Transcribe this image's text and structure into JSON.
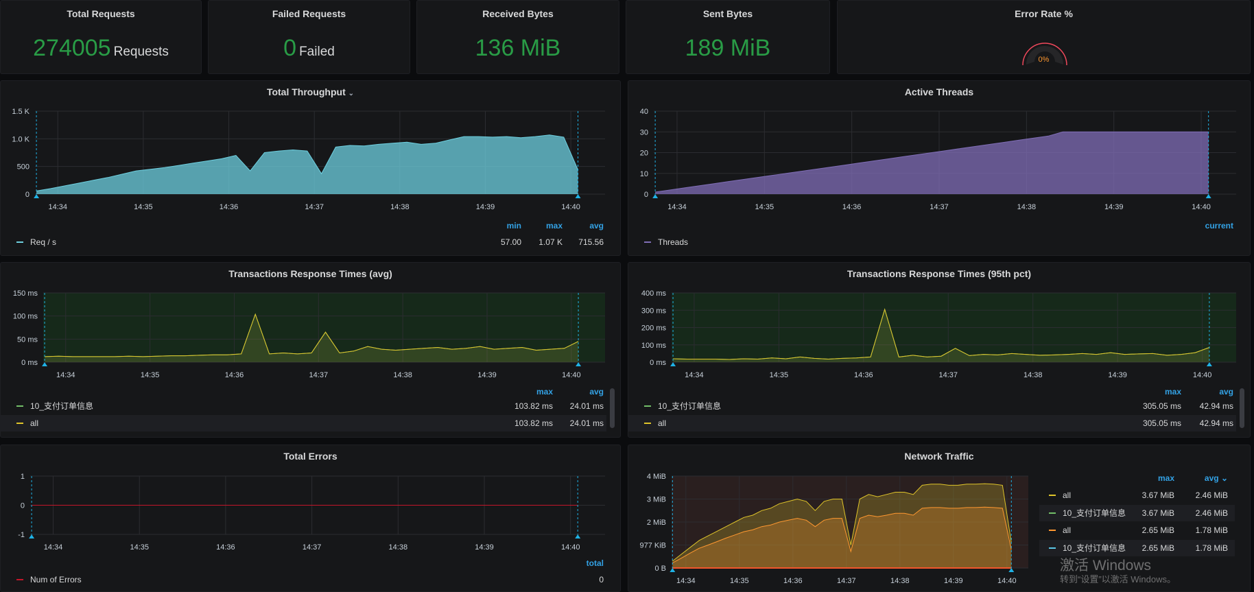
{
  "stats": [
    {
      "title": "Total Requests",
      "value": "274005",
      "unit": "Requests"
    },
    {
      "title": "Failed Requests",
      "value": "0",
      "unit": "Failed"
    },
    {
      "title": "Received Bytes",
      "value": "136 MiB",
      "unit": ""
    },
    {
      "title": "Sent Bytes",
      "value": "189 MiB",
      "unit": ""
    }
  ],
  "error_rate": {
    "title": "Error Rate %",
    "value": "0%",
    "fraction": 0,
    "color": "#f2495c"
  },
  "timestamps": [
    "14:33:45",
    "14:33:55",
    "14:34:05",
    "14:34:15",
    "14:34:25",
    "14:34:35",
    "14:34:45",
    "14:34:55",
    "14:35:05",
    "14:35:15",
    "14:35:25",
    "14:35:35",
    "14:35:45",
    "14:35:55",
    "14:36:05",
    "14:36:15",
    "14:36:25",
    "14:36:35",
    "14:36:45",
    "14:36:55",
    "14:37:05",
    "14:37:15",
    "14:37:25",
    "14:37:35",
    "14:37:45",
    "14:37:55",
    "14:38:05",
    "14:38:15",
    "14:38:25",
    "14:38:35",
    "14:38:45",
    "14:38:55",
    "14:39:05",
    "14:39:15",
    "14:39:25",
    "14:39:35",
    "14:39:45",
    "14:39:55",
    "14:40:05"
  ],
  "x_ticks": [
    "14:34",
    "14:35",
    "14:36",
    "14:37",
    "14:38",
    "14:39",
    "14:40"
  ],
  "chart_data": [
    {
      "id": "throughput",
      "type": "area",
      "title": "Total Throughput",
      "title_icon": "chevron-down-icon",
      "ylim": [
        0,
        1500
      ],
      "y_ticks": [
        "0",
        "500",
        "1.0 K",
        "1.5 K"
      ],
      "grid": true,
      "series": [
        {
          "name": "Req / s",
          "color": "#6ed0e0",
          "values": [
            57,
            100,
            150,
            200,
            250,
            300,
            360,
            420,
            450,
            480,
            520,
            560,
            600,
            640,
            700,
            420,
            750,
            780,
            800,
            780,
            370,
            850,
            880,
            870,
            900,
            920,
            940,
            900,
            920,
            980,
            1040,
            1040,
            1030,
            1040,
            1020,
            1040,
            1070,
            1030,
            440
          ]
        }
      ],
      "legend": {
        "headers": [
          "min",
          "max",
          "avg"
        ],
        "rows": [
          {
            "name": "Req / s",
            "color": "#6ed0e0",
            "vals": [
              "57.00",
              "1.07 K",
              "715.56"
            ]
          }
        ]
      }
    },
    {
      "id": "threads",
      "type": "area",
      "title": "Active Threads",
      "ylim": [
        0,
        40
      ],
      "y_ticks": [
        "0",
        "10",
        "20",
        "30",
        "40"
      ],
      "grid": true,
      "series": [
        {
          "name": "Threads",
          "color": "#806eb7",
          "values": [
            1,
            2,
            3,
            4,
            5,
            6,
            7,
            8,
            9,
            10,
            11,
            12,
            13,
            14,
            15,
            16,
            17,
            18,
            19,
            20,
            21,
            22,
            23,
            24,
            25,
            26,
            27,
            28,
            30,
            30,
            30,
            30,
            30,
            30,
            30,
            30,
            30,
            30,
            30
          ]
        }
      ],
      "legend": {
        "headers": [
          "current"
        ],
        "rows": [
          {
            "name": "Threads",
            "color": "#806eb7",
            "vals": [
              ""
            ]
          }
        ]
      }
    },
    {
      "id": "resp-avg",
      "type": "line",
      "title": "Transactions Response Times (avg)",
      "ylim": [
        0,
        150
      ],
      "y_ticks": [
        "0 ms",
        "50 ms",
        "100 ms",
        "150 ms"
      ],
      "grid": true,
      "bg": "#16291a",
      "series": [
        {
          "name": "10_支付订单信息",
          "color": "#73bf69",
          "values": [
            12,
            13,
            12,
            12,
            12,
            12,
            13,
            12,
            13,
            14,
            14,
            15,
            16,
            16,
            18,
            103.82,
            18,
            20,
            18,
            20,
            65,
            20,
            24,
            34,
            28,
            26,
            28,
            30,
            32,
            28,
            30,
            34,
            28,
            30,
            32,
            26,
            28,
            30,
            45
          ]
        },
        {
          "name": "all",
          "color": "#e0c52a",
          "values": [
            12,
            13,
            12,
            12,
            12,
            12,
            13,
            12,
            13,
            14,
            14,
            15,
            16,
            16,
            18,
            103.82,
            18,
            20,
            18,
            20,
            65,
            20,
            24,
            34,
            28,
            26,
            28,
            30,
            32,
            28,
            30,
            34,
            28,
            30,
            32,
            26,
            28,
            30,
            45
          ]
        }
      ],
      "legend": {
        "headers": [
          "max",
          "avg"
        ],
        "rows": [
          {
            "name": "10_支付订单信息",
            "color": "#73bf69",
            "vals": [
              "103.82 ms",
              "24.01 ms"
            ]
          },
          {
            "name": "all",
            "color": "#e0c52a",
            "vals": [
              "103.82 ms",
              "24.01 ms"
            ]
          }
        ]
      }
    },
    {
      "id": "resp-95",
      "type": "line",
      "title": "Transactions Response Times (95th pct)",
      "ylim": [
        0,
        400
      ],
      "y_ticks": [
        "0 ms",
        "100 ms",
        "200 ms",
        "300 ms",
        "400 ms"
      ],
      "grid": true,
      "bg": "#16291a",
      "series": [
        {
          "name": "10_支付订单信息",
          "color": "#73bf69",
          "values": [
            20,
            18,
            18,
            18,
            16,
            20,
            18,
            25,
            20,
            30,
            22,
            18,
            22,
            25,
            30,
            305.05,
            30,
            40,
            30,
            35,
            80,
            38,
            45,
            42,
            50,
            45,
            40,
            42,
            45,
            50,
            45,
            55,
            45,
            48,
            50,
            40,
            45,
            55,
            85
          ]
        },
        {
          "name": "all",
          "color": "#e0c52a",
          "values": [
            20,
            18,
            18,
            18,
            16,
            20,
            18,
            25,
            20,
            30,
            22,
            18,
            22,
            25,
            30,
            305.05,
            30,
            40,
            30,
            35,
            80,
            38,
            45,
            42,
            50,
            45,
            40,
            42,
            45,
            50,
            45,
            55,
            45,
            48,
            50,
            40,
            45,
            55,
            85
          ]
        }
      ],
      "legend": {
        "headers": [
          "max",
          "avg"
        ],
        "rows": [
          {
            "name": "10_支付订单信息",
            "color": "#73bf69",
            "vals": [
              "305.05 ms",
              "42.94 ms"
            ]
          },
          {
            "name": "all",
            "color": "#e0c52a",
            "vals": [
              "305.05 ms",
              "42.94 ms"
            ]
          }
        ]
      }
    },
    {
      "id": "errors",
      "type": "line",
      "title": "Total Errors",
      "ylim": [
        -1,
        1
      ],
      "y_ticks": [
        "-1",
        "0",
        "1"
      ],
      "grid": true,
      "series": [
        {
          "name": "Num of Errors",
          "color": "#c4162a",
          "values": [
            0,
            0,
            0,
            0,
            0,
            0,
            0,
            0,
            0,
            0,
            0,
            0,
            0,
            0,
            0,
            0,
            0,
            0,
            0,
            0,
            0,
            0,
            0,
            0,
            0,
            0,
            0,
            0,
            0,
            0,
            0,
            0,
            0,
            0,
            0,
            0,
            0,
            0,
            0
          ]
        }
      ],
      "legend": {
        "headers": [
          "total"
        ],
        "rows": [
          {
            "name": "Num of Errors",
            "color": "#c4162a",
            "vals": [
              "0"
            ]
          }
        ]
      }
    },
    {
      "id": "network",
      "type": "area",
      "title": "Network Traffic",
      "ylim": [
        0,
        4
      ],
      "y_ticks": [
        "0 B",
        "977 KiB",
        "2 MiB",
        "3 MiB",
        "4 MiB"
      ],
      "grid": true,
      "bg": "#2a1f1f",
      "series": [
        {
          "name": "all",
          "color": "#e0c52a",
          "values": [
            0.3,
            0.6,
            0.9,
            1.2,
            1.4,
            1.6,
            1.8,
            2.0,
            2.2,
            2.3,
            2.5,
            2.6,
            2.8,
            2.9,
            3.0,
            2.9,
            2.5,
            2.9,
            3.0,
            3.0,
            1.0,
            3.0,
            3.2,
            3.1,
            3.2,
            3.3,
            3.3,
            3.2,
            3.6,
            3.65,
            3.65,
            3.6,
            3.6,
            3.65,
            3.65,
            3.67,
            3.65,
            3.6,
            1.1
          ]
        },
        {
          "name": "all",
          "color": "#ff9830",
          "values": [
            0.22,
            0.43,
            0.65,
            0.86,
            1.0,
            1.15,
            1.3,
            1.44,
            1.58,
            1.66,
            1.8,
            1.87,
            2.0,
            2.08,
            2.16,
            2.08,
            1.8,
            2.08,
            2.16,
            2.16,
            0.72,
            2.16,
            2.3,
            2.23,
            2.3,
            2.38,
            2.38,
            2.3,
            2.6,
            2.63,
            2.63,
            2.6,
            2.6,
            2.63,
            2.63,
            2.65,
            2.63,
            2.6,
            0.8
          ]
        },
        {
          "name": "10_支付订单信息",
          "color": "#f2552c",
          "values": [
            0,
            0,
            0,
            0,
            0,
            0,
            0,
            0,
            0,
            0,
            0,
            0,
            0,
            0,
            0,
            0,
            0,
            0,
            0,
            0,
            0,
            0,
            0,
            0,
            0,
            0,
            0,
            0,
            0,
            0,
            0,
            0,
            0,
            0,
            0,
            0,
            0,
            0,
            0
          ]
        }
      ],
      "legend": {
        "headers": [
          "max",
          "avg"
        ],
        "rows": [
          {
            "name": "all",
            "color": "#e0c52a",
            "vals": [
              "3.67 MiB",
              "2.46 MiB"
            ]
          },
          {
            "name": "10_支付订单信息",
            "color": "#73bf69",
            "vals": [
              "3.67 MiB",
              "2.46 MiB"
            ]
          },
          {
            "name": "all",
            "color": "#ff9830",
            "vals": [
              "2.65 MiB",
              "1.78 MiB"
            ]
          },
          {
            "name": "10_支付订单信息",
            "color": "#5bc8e8",
            "vals": [
              "2.65 MiB",
              "1.78 MiB"
            ]
          }
        ]
      }
    }
  ],
  "watermark": {
    "line1": "激活 Windows",
    "line2": "转到“设置”以激活 Windows。"
  }
}
